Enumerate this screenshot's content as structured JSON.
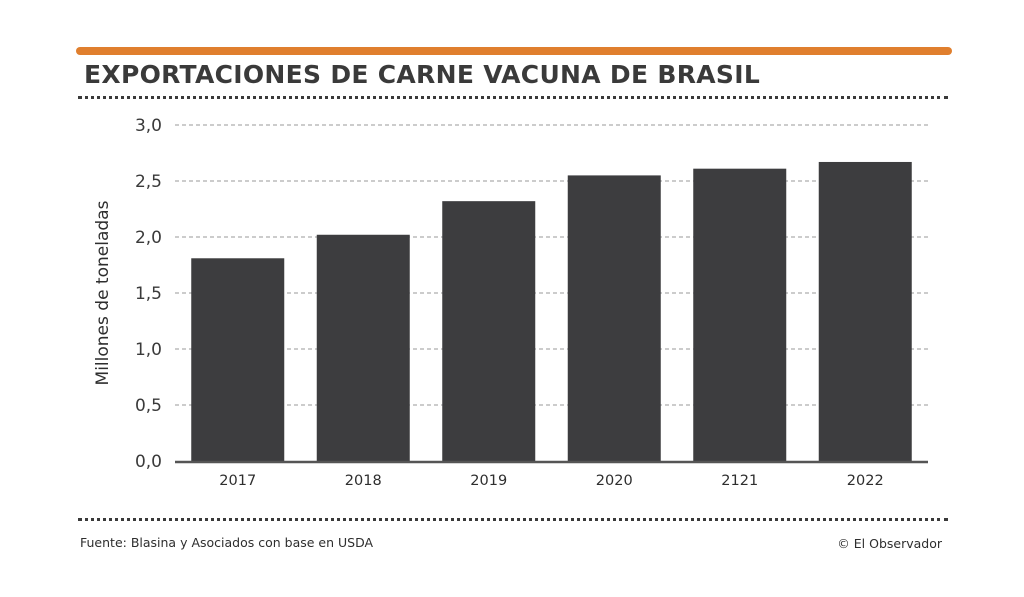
{
  "colors": {
    "accent": "#e07f2e",
    "bar": "#3d3d3f",
    "text": "#3a3a3a"
  },
  "chart_data": {
    "type": "bar",
    "title": "EXPORTACIONES DE CARNE VACUNA DE BRASIL",
    "xlabel": "",
    "ylabel": "Millones de toneladas",
    "categories": [
      "2017",
      "2018",
      "2019",
      "2020",
      "2121",
      "2022"
    ],
    "values": [
      1.81,
      2.02,
      2.32,
      2.55,
      2.61,
      2.67
    ],
    "ylim": [
      0,
      3
    ],
    "yticks": [
      "0,0",
      "0,5",
      "1,0",
      "1,5",
      "2,0",
      "2,5",
      "3,0"
    ],
    "grid": true
  },
  "footer": {
    "source": "Fuente: Blasina y Asociados con base en USDA",
    "credit": "© El Observador"
  }
}
